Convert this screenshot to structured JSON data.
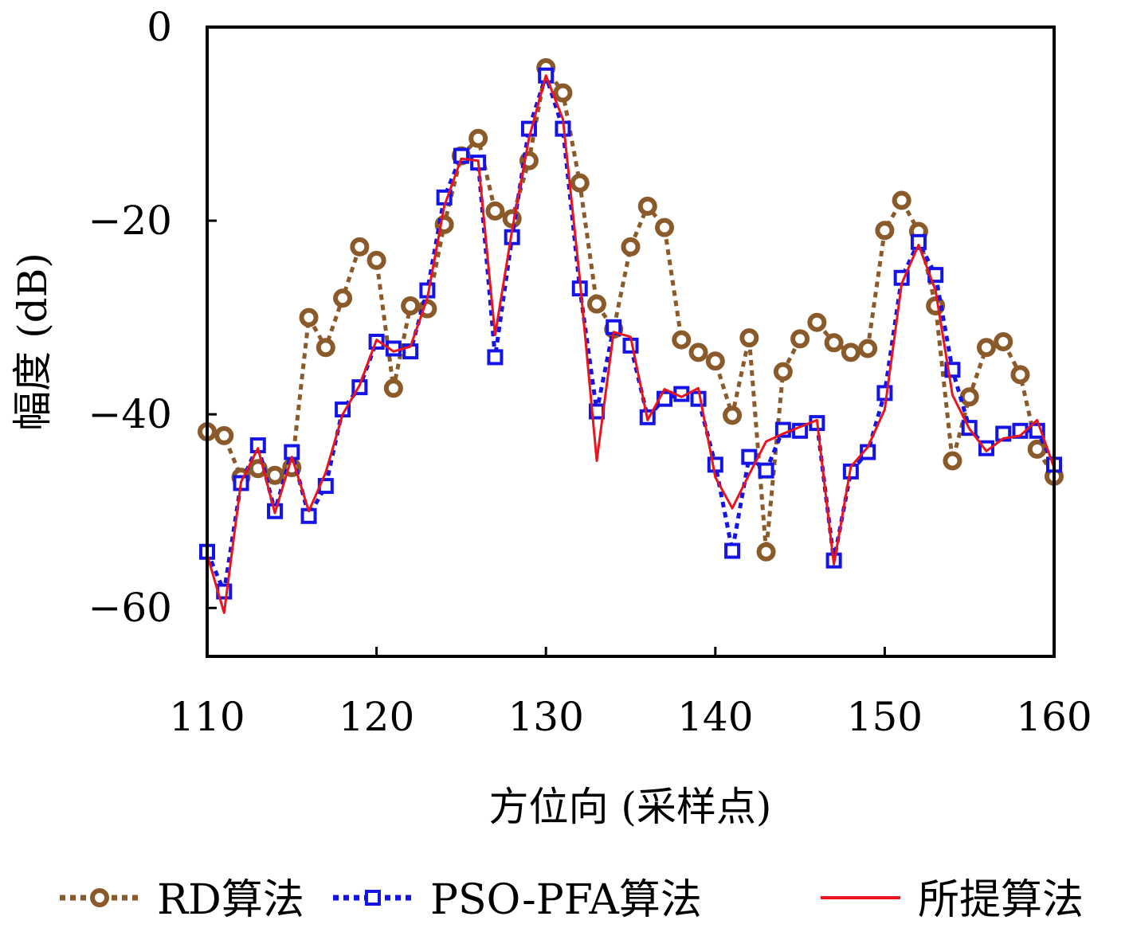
{
  "chart_data": {
    "type": "line",
    "title": "",
    "xlabel": "方位向 (采样点)",
    "ylabel": "幅度 (dB)",
    "xlim": [
      110,
      160
    ],
    "ylim": [
      -65,
      0
    ],
    "xticks": [
      110,
      120,
      130,
      140,
      150,
      160
    ],
    "yticks": [
      0,
      -20,
      -40,
      -60
    ],
    "xtick_labels": [
      "110",
      "120",
      "130",
      "140",
      "150",
      "160"
    ],
    "ytick_labels": [
      "0",
      "−20",
      "−40",
      "−60"
    ],
    "grid": false,
    "legend_position": "bottom",
    "x": [
      110,
      111,
      112,
      113,
      114,
      115,
      116,
      117,
      118,
      119,
      120,
      121,
      122,
      123,
      124,
      125,
      126,
      127,
      128,
      129,
      130,
      131,
      132,
      133,
      134,
      135,
      136,
      137,
      138,
      139,
      140,
      141,
      142,
      143,
      144,
      145,
      146,
      147,
      148,
      149,
      150,
      151,
      152,
      153,
      154,
      155,
      156,
      157,
      158,
      159,
      160
    ],
    "series": [
      {
        "name": "RD算法",
        "color": "#8B5A2B",
        "line_style": "dotted",
        "marker": "circle",
        "values": [
          -41.8,
          -42.2,
          -46.5,
          -45.6,
          -46.3,
          -45.5,
          -30.0,
          -33.1,
          -28.0,
          -22.7,
          -24.1,
          -37.3,
          -28.8,
          -29.1,
          -20.4,
          -13.3,
          -11.5,
          -19.0,
          -19.8,
          -13.8,
          -4.2,
          -6.8,
          -16.1,
          -28.6,
          -31.2,
          -22.7,
          -18.5,
          -20.7,
          -32.3,
          -33.6,
          -34.5,
          -40.1,
          -32.1,
          -54.2,
          -35.6,
          -32.2,
          -30.5,
          -32.6,
          -33.6,
          -33.2,
          -21.0,
          -17.9,
          -21.1,
          -28.8,
          -44.8,
          -38.2,
          -33.1,
          -32.5,
          -35.9,
          -43.6,
          -46.4
        ]
      },
      {
        "name": "PSO-PFA算法",
        "color": "#1414E6",
        "line_style": "dotted",
        "marker": "square",
        "values": [
          -54.2,
          -58.3,
          -47.1,
          -43.2,
          -50.0,
          -43.9,
          -50.5,
          -47.4,
          -39.5,
          -37.2,
          -32.5,
          -33.2,
          -33.5,
          -27.2,
          -17.6,
          -13.3,
          -14.0,
          -34.1,
          -21.7,
          -10.5,
          -5.0,
          -10.5,
          -27.0,
          -39.7,
          -31.0,
          -32.9,
          -40.3,
          -38.4,
          -37.9,
          -38.4,
          -45.2,
          -54.1,
          -44.4,
          -45.8,
          -41.6,
          -41.7,
          -40.9,
          -55.1,
          -45.9,
          -43.9,
          -37.8,
          -25.9,
          -22.2,
          -25.6,
          -35.4,
          -41.4,
          -43.5,
          -42.0,
          -41.7,
          -41.7,
          -45.2
        ]
      },
      {
        "name": "所提算法",
        "color": "#E8141E",
        "line_style": "solid",
        "marker": "none",
        "values": [
          -54.5,
          -60.5,
          -47.0,
          -43.5,
          -50.2,
          -44.4,
          -50.0,
          -46.0,
          -40.0,
          -37.0,
          -32.3,
          -33.5,
          -33.0,
          -28.0,
          -18.5,
          -13.6,
          -13.8,
          -31.8,
          -21.0,
          -11.5,
          -5.0,
          -9.5,
          -26.0,
          -44.8,
          -31.5,
          -32.0,
          -40.6,
          -37.4,
          -38.2,
          -37.3,
          -46.5,
          -49.7,
          -46.2,
          -42.8,
          -42.0,
          -41.3,
          -40.6,
          -55.5,
          -45.4,
          -43.4,
          -39.5,
          -26.5,
          -22.5,
          -27.2,
          -38.0,
          -41.5,
          -43.8,
          -42.5,
          -42.2,
          -40.6,
          -45.5
        ]
      }
    ]
  }
}
